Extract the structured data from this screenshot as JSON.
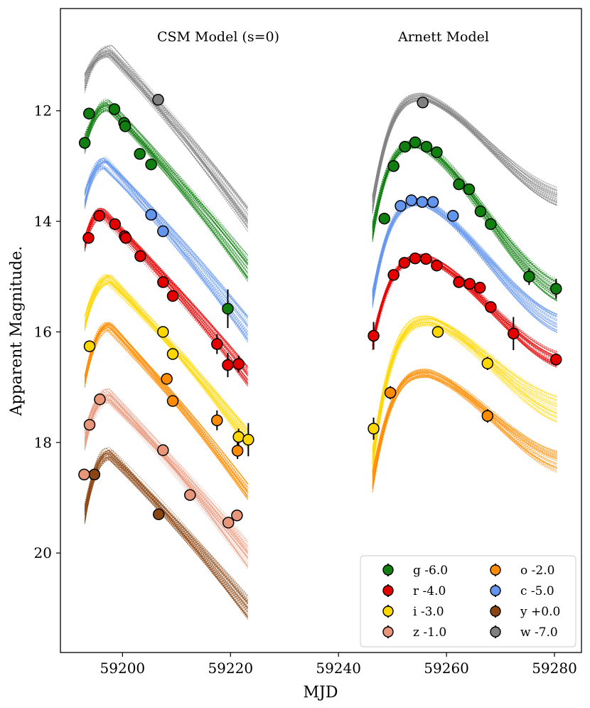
{
  "chart_data": {
    "type": "scatter",
    "xlabel": "MJD",
    "ylabel": "Apparent Magnitude.",
    "xlim": [
      59188.5,
      59285
    ],
    "ylim": [
      21.8,
      10.15
    ],
    "y_inverted": true,
    "xticks": [
      59200,
      59220,
      59240,
      59260,
      59280
    ],
    "yticks": [
      12,
      14,
      16,
      18,
      20
    ],
    "grid": false,
    "legend_position": "lower-right",
    "panels": [
      {
        "title": "CSM Model (s=0)",
        "x_start": 59193,
        "x_end": 59223.2,
        "model": "csm"
      },
      {
        "title": "Arnett Model",
        "x_start": 59246.3,
        "x_end": 59280.5,
        "model": "arnett"
      }
    ],
    "series": [
      {
        "band": "g",
        "label": "g -6.0",
        "color": "#107f10",
        "csm_model": {
          "mag0": 12.6,
          "peak_x": 59197.4,
          "peak_mag": 11.9,
          "end_mag": 14.85,
          "spread": 0.12
        },
        "arnett_model": {
          "start_mag": 14.2,
          "peak_x": 59255,
          "peak_mag": 12.6,
          "end_mag": 15.25,
          "spread": 0.08
        },
        "points": [
          [
            59193,
            12.58
          ],
          [
            59193.8,
            12.05
          ],
          [
            59198.5,
            11.97
          ],
          [
            59200.3,
            12.22
          ],
          [
            59200.5,
            12.28
          ],
          [
            59203.2,
            12.78
          ],
          [
            59205.3,
            12.97
          ],
          [
            59219.5,
            15.58
          ],
          [
            59248.5,
            13.95
          ],
          [
            59250.2,
            13.0
          ],
          [
            59252.3,
            12.65
          ],
          [
            59254.2,
            12.57
          ],
          [
            59256.3,
            12.65
          ],
          [
            59258.2,
            12.75
          ],
          [
            59262.3,
            13.33
          ],
          [
            59264.2,
            13.42
          ],
          [
            59266.3,
            13.82
          ],
          [
            59268.2,
            14.05
          ],
          [
            59275.3,
            15.0
          ],
          [
            59280.3,
            15.22
          ]
        ]
      },
      {
        "band": "r",
        "label": "r -4.0",
        "color": "#e50000",
        "csm_model": {
          "mag0": 14.4,
          "peak_x": 59196.2,
          "peak_mag": 13.85,
          "end_mag": 16.8,
          "spread": 0.1
        },
        "arnett_model": {
          "start_mag": 16.2,
          "peak_x": 59256,
          "peak_mag": 14.65,
          "end_mag": 16.5,
          "spread": 0.06
        },
        "points": [
          [
            59193.7,
            14.3
          ],
          [
            59195.7,
            13.9
          ],
          [
            59198.6,
            14.05
          ],
          [
            59200.4,
            14.27
          ],
          [
            59200.6,
            14.3
          ],
          [
            59203.3,
            14.63
          ],
          [
            59207.5,
            15.1
          ],
          [
            59209.3,
            15.35
          ],
          [
            59217.5,
            16.22
          ],
          [
            59219.5,
            16.6
          ],
          [
            59221.5,
            16.58
          ],
          [
            59246.5,
            16.07
          ],
          [
            59250.2,
            14.97
          ],
          [
            59252.2,
            14.75
          ],
          [
            59254.2,
            14.67
          ],
          [
            59256.2,
            14.68
          ],
          [
            59258.2,
            14.8
          ],
          [
            59262.3,
            15.1
          ],
          [
            59264.3,
            15.13
          ],
          [
            59266.2,
            15.2
          ],
          [
            59268.2,
            15.55
          ],
          [
            59272.4,
            16.03
          ],
          [
            59280.3,
            16.5
          ]
        ]
      },
      {
        "band": "i",
        "label": "i -3.0",
        "color": "#ffd700",
        "csm_model": {
          "mag0": 15.85,
          "peak_x": 59197.6,
          "peak_mag": 15.05,
          "end_mag": 17.95,
          "spread": 0.1
        },
        "arnett_model": {
          "start_mag": 18.3,
          "peak_x": 59257,
          "peak_mag": 15.8,
          "end_mag": 17.4,
          "spread": 0.1
        },
        "points": [
          [
            59193.9,
            16.26
          ],
          [
            59207.5,
            16.0
          ],
          [
            59209.3,
            16.4
          ],
          [
            59221.5,
            17.9
          ],
          [
            59223.3,
            17.95
          ],
          [
            59246.5,
            17.75
          ],
          [
            59258.4,
            16.0
          ],
          [
            59267.6,
            16.57
          ]
        ]
      },
      {
        "band": "z",
        "label": "z -1.0",
        "color": "#e8967a",
        "csm_model": {
          "mag0": 17.95,
          "peak_x": 59197.4,
          "peak_mag": 17.15,
          "end_mag": 20.05,
          "spread": 0.14
        },
        "arnett_model": null,
        "points": [
          [
            59193.9,
            17.68
          ],
          [
            59195.8,
            17.22
          ],
          [
            59207.5,
            18.14
          ],
          [
            59212.5,
            18.95
          ],
          [
            59219.6,
            19.45
          ],
          [
            59221.2,
            19.32
          ]
        ]
      },
      {
        "band": "o",
        "label": "o -2.0",
        "color": "#ff8c00",
        "csm_model": {
          "mag0": 16.9,
          "peak_x": 59197.5,
          "peak_mag": 15.9,
          "end_mag": 18.9,
          "spread": 0.08
        },
        "arnett_model": {
          "start_mag": 18.7,
          "peak_x": 59256.5,
          "peak_mag": 16.75,
          "end_mag": 18.35,
          "spread": 0.08
        },
        "points": [
          [
            59208.2,
            16.85
          ],
          [
            59209.3,
            17.25
          ],
          [
            59217.5,
            17.6
          ],
          [
            59221.3,
            18.15
          ],
          [
            59249.6,
            17.1
          ],
          [
            59267.6,
            17.52
          ]
        ]
      },
      {
        "band": "c",
        "label": "c -5.0",
        "color": "#6495ed",
        "csm_model": {
          "mag0": 13.6,
          "peak_x": 59196.8,
          "peak_mag": 12.95,
          "end_mag": 15.95,
          "spread": 0.12
        },
        "arnett_model": {
          "start_mag": 15.4,
          "peak_x": 59255.5,
          "peak_mag": 13.65,
          "end_mag": 15.85,
          "spread": 0.07
        },
        "points": [
          [
            59205.3,
            13.88
          ],
          [
            59207.5,
            14.18
          ],
          [
            59251.5,
            13.72
          ],
          [
            59253.5,
            13.62
          ],
          [
            59255.5,
            13.65
          ],
          [
            59257.5,
            13.65
          ],
          [
            59261.2,
            13.9
          ]
        ]
      },
      {
        "band": "y",
        "label": "y +0.0",
        "color": "#8b4513",
        "csm_model": {
          "mag0": 19.3,
          "peak_x": 59197.6,
          "peak_mag": 18.2,
          "end_mag": 21.0,
          "spread": 0.12
        },
        "arnett_model": null,
        "points": [
          [
            59194.8,
            18.58
          ],
          [
            59206.7,
            19.3
          ]
        ]
      },
      {
        "band": "w",
        "label": "w -7.0",
        "color": "#808080",
        "csm_model": {
          "mag0": 11.5,
          "peak_x": 59197.6,
          "peak_mag": 10.92,
          "end_mag": 13.95,
          "spread": 0.12
        },
        "arnett_model": {
          "start_mag": 13.7,
          "peak_x": 59256,
          "peak_mag": 11.75,
          "end_mag": 13.55,
          "spread": 0.07
        },
        "points": [
          [
            59206.6,
            11.8
          ],
          [
            59255.6,
            11.85
          ]
        ]
      }
    ],
    "extra_points": [
      {
        "band": "z",
        "points": [
          [
            59192.9,
            18.58
          ]
        ]
      }
    ],
    "legend": [
      {
        "label": "g -6.0",
        "color": "#107f10"
      },
      {
        "label": "o -2.0",
        "color": "#ff8c00"
      },
      {
        "label": "r -4.0",
        "color": "#e50000"
      },
      {
        "label": "c -5.0",
        "color": "#6495ed"
      },
      {
        "label": "i -3.0",
        "color": "#ffd700"
      },
      {
        "label": "y +0.0",
        "color": "#8b4513"
      },
      {
        "label": "z -1.0",
        "color": "#e8967a"
      },
      {
        "label": "w -7.0",
        "color": "#808080"
      }
    ]
  }
}
